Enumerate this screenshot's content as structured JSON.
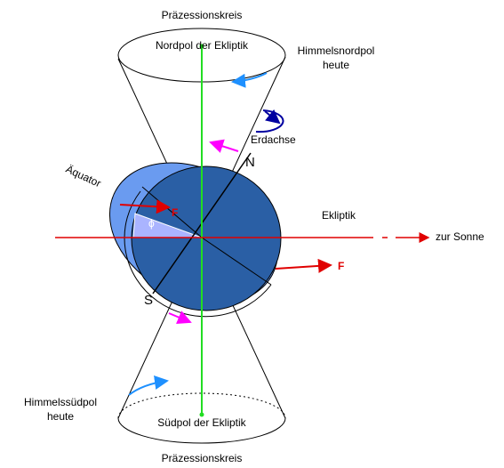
{
  "labels": {
    "top_circle": "Präzessionskreis",
    "north_ecliptic_pole": "Nordpol der Ekliptik",
    "north_celestial_pole": [
      "Himmelsnordpol",
      "heute"
    ],
    "earth_axis": "Erdachse",
    "north": "N",
    "equator": "Äquator",
    "force_left": "F",
    "angle": "ϕ",
    "ecliptic": "Ekliptik",
    "sun_direction": "zur Sonne",
    "force_right": "F",
    "south": "S",
    "south_celestial_pole": [
      "Himmelssüdpol",
      "heute"
    ],
    "south_ecliptic_pole": "Südpol der Ekliptik",
    "bottom_circle": "Präzessionskreis"
  }
}
